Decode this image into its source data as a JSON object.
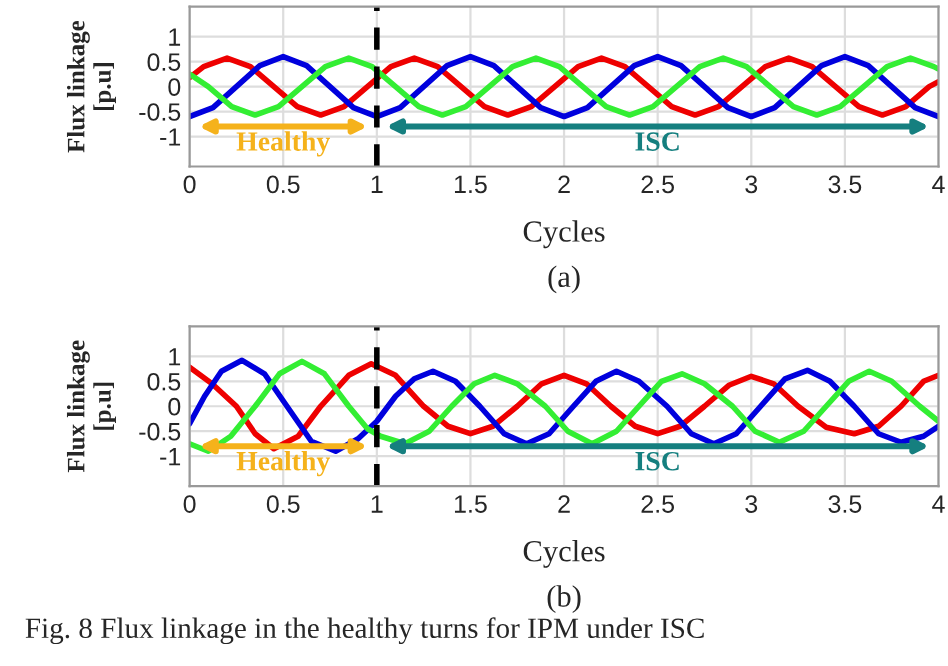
{
  "chart_data": [
    {
      "type": "line",
      "xlabel": "Cycles",
      "ylabel": "Flux linkage\n[p.u]",
      "xlim": [
        0,
        4
      ],
      "ylim": [
        -1.6,
        1.6
      ],
      "xticks": [
        0,
        0.5,
        1,
        1.5,
        2,
        2.5,
        3,
        3.5,
        4
      ],
      "yticks": [
        -1,
        -0.5,
        0,
        0.5,
        1
      ],
      "grid": true,
      "line_style": "solid",
      "marker": "none",
      "ref_lines": [
        {
          "axis": "x",
          "value": 1,
          "color": "#000000",
          "line_style": "dashed"
        }
      ],
      "annotations": [
        "Healthy",
        "ISC",
        "(a)"
      ],
      "series": [
        {
          "color": "#ee0000",
          "x": [
            0,
            0.075,
            0.2,
            0.325,
            0.45,
            0.575,
            0.7,
            0.825,
            0.95,
            1.075,
            1.2,
            1.325,
            1.45,
            1.575,
            1.7,
            1.825,
            1.95,
            2.075,
            2.2,
            2.325,
            2.45,
            2.575,
            2.7,
            2.825,
            2.95,
            3.075,
            3.2,
            3.325,
            3.45,
            3.575,
            3.7,
            3.825,
            3.95,
            4.0
          ],
          "values": [
            0.18,
            0.4,
            0.57,
            0.4,
            0,
            -0.4,
            -0.57,
            -0.4,
            0,
            0.4,
            0.57,
            0.4,
            0,
            -0.4,
            -0.57,
            -0.4,
            0,
            0.4,
            0.57,
            0.4,
            0,
            -0.4,
            -0.57,
            -0.4,
            0,
            0.4,
            0.57,
            0.4,
            0,
            -0.4,
            -0.57,
            -0.4,
            0,
            0.1
          ]
        },
        {
          "color": "#0000dd",
          "x": [
            0,
            0.125,
            0.25,
            0.375,
            0.5,
            0.625,
            0.75,
            0.875,
            1,
            1.125,
            1.25,
            1.375,
            1.5,
            1.625,
            1.75,
            1.875,
            2,
            2.125,
            2.25,
            2.375,
            2.5,
            2.625,
            2.75,
            2.875,
            3,
            3.125,
            3.25,
            3.375,
            3.5,
            3.625,
            3.75,
            3.875,
            4
          ],
          "values": [
            -0.6,
            -0.42,
            0,
            0.42,
            0.6,
            0.42,
            0,
            -0.42,
            -0.6,
            -0.42,
            0,
            0.42,
            0.6,
            0.42,
            0,
            -0.42,
            -0.6,
            -0.42,
            0,
            0.42,
            0.6,
            0.42,
            0,
            -0.42,
            -0.6,
            -0.42,
            0,
            0.42,
            0.6,
            0.42,
            0,
            -0.42,
            -0.6
          ]
        },
        {
          "color": "#33ee33",
          "x": [
            0,
            0.1,
            0.225,
            0.35,
            0.475,
            0.6,
            0.725,
            0.85,
            0.975,
            1.1,
            1.225,
            1.35,
            1.475,
            1.6,
            1.725,
            1.85,
            1.975,
            2.1,
            2.225,
            2.35,
            2.475,
            2.6,
            2.725,
            2.85,
            2.975,
            3.1,
            3.225,
            3.35,
            3.475,
            3.6,
            3.725,
            3.85,
            3.975,
            4.0
          ],
          "values": [
            0.25,
            0,
            -0.4,
            -0.57,
            -0.4,
            0,
            0.4,
            0.57,
            0.4,
            0,
            -0.4,
            -0.57,
            -0.4,
            0,
            0.4,
            0.57,
            0.4,
            0,
            -0.4,
            -0.57,
            -0.4,
            0,
            0.4,
            0.57,
            0.4,
            0,
            -0.4,
            -0.57,
            -0.4,
            0,
            0.4,
            0.57,
            0.4,
            0.35
          ]
        }
      ]
    },
    {
      "type": "line",
      "xlabel": "Cycles",
      "ylabel": "Flux linkage\n[p.u]",
      "xlim": [
        0,
        4
      ],
      "ylim": [
        -1.6,
        1.6
      ],
      "xticks": [
        0,
        0.5,
        1,
        1.5,
        2,
        2.5,
        3,
        3.5,
        4
      ],
      "yticks": [
        -1,
        -0.5,
        0,
        0.5,
        1
      ],
      "grid": true,
      "line_style": "solid",
      "marker": "none",
      "ref_lines": [
        {
          "axis": "x",
          "value": 1,
          "color": "#000000",
          "line_style": "dashed"
        }
      ],
      "annotations": [
        "Healthy",
        "ISC",
        "(b)",
        "Fig. 8 Flux linkage in the healthy turns for IPM under ISC"
      ],
      "series": [
        {
          "color": "#ee0000",
          "x": [
            0,
            0.12,
            0.25,
            0.35,
            0.45,
            0.58,
            0.7,
            0.85,
            0.97,
            1.1,
            1.25,
            1.38,
            1.5,
            1.62,
            1.75,
            1.88,
            2.0,
            2.12,
            2.25,
            2.38,
            2.5,
            2.62,
            2.75,
            2.88,
            3.0,
            3.12,
            3.25,
            3.4,
            3.55,
            3.68,
            3.8,
            3.92,
            4.0
          ],
          "values": [
            0.78,
            0.45,
            0,
            -0.55,
            -0.85,
            -0.6,
            0,
            0.62,
            0.85,
            0.62,
            0,
            -0.4,
            -0.55,
            -0.4,
            0,
            0.45,
            0.62,
            0.45,
            0,
            -0.4,
            -0.55,
            -0.4,
            0,
            0.42,
            0.6,
            0.45,
            0,
            -0.42,
            -0.55,
            -0.4,
            0,
            0.5,
            0.62
          ]
        },
        {
          "color": "#0000dd",
          "x": [
            0,
            0.08,
            0.17,
            0.28,
            0.4,
            0.52,
            0.65,
            0.78,
            0.9,
            1.0,
            1.1,
            1.2,
            1.3,
            1.42,
            1.55,
            1.68,
            1.8,
            1.92,
            2.05,
            2.17,
            2.28,
            2.4,
            2.55,
            2.68,
            2.8,
            2.92,
            3.05,
            3.18,
            3.3,
            3.42,
            3.55,
            3.68,
            3.8,
            3.92,
            4.0
          ],
          "values": [
            -0.35,
            0.2,
            0.7,
            0.92,
            0.65,
            0,
            -0.7,
            -0.9,
            -0.65,
            -0.3,
            0.2,
            0.55,
            0.7,
            0.5,
            0,
            -0.55,
            -0.75,
            -0.55,
            0,
            0.5,
            0.7,
            0.5,
            0,
            -0.55,
            -0.75,
            -0.55,
            0,
            0.55,
            0.72,
            0.5,
            0,
            -0.55,
            -0.72,
            -0.6,
            -0.4
          ]
        },
        {
          "color": "#33ee33",
          "x": [
            0,
            0.1,
            0.22,
            0.35,
            0.48,
            0.6,
            0.72,
            0.85,
            0.95,
            1.02,
            1.15,
            1.28,
            1.4,
            1.52,
            1.63,
            1.75,
            1.9,
            2.02,
            2.15,
            2.28,
            2.4,
            2.52,
            2.63,
            2.75,
            2.9,
            3.02,
            3.15,
            3.28,
            3.4,
            3.52,
            3.63,
            3.75,
            3.9,
            4.0
          ],
          "values": [
            -0.75,
            -0.9,
            -0.6,
            0,
            0.65,
            0.9,
            0.65,
            0,
            -0.45,
            -0.6,
            -0.75,
            -0.5,
            0,
            0.45,
            0.62,
            0.45,
            0,
            -0.5,
            -0.75,
            -0.5,
            0,
            0.5,
            0.65,
            0.45,
            0,
            -0.5,
            -0.72,
            -0.5,
            0,
            0.5,
            0.7,
            0.5,
            0,
            -0.3
          ]
        }
      ]
    }
  ]
}
